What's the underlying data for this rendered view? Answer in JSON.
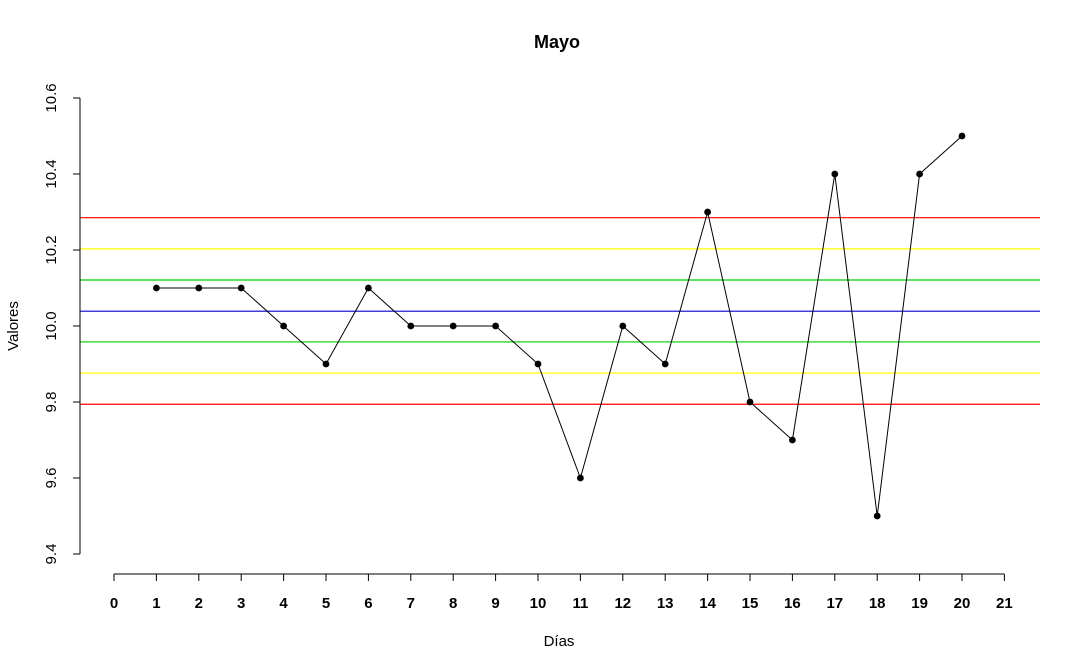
{
  "chart_data": {
    "type": "line",
    "title": "Mayo",
    "xlabel": "Días",
    "ylabel": "Valores",
    "xlim": [
      0,
      21
    ],
    "ylim": [
      9.4,
      10.6
    ],
    "x_ticks": [
      "0",
      "1",
      "2",
      "3",
      "4",
      "5",
      "6",
      "7",
      "8",
      "9",
      "10",
      "11",
      "12",
      "13",
      "14",
      "15",
      "16",
      "17",
      "18",
      "19",
      "20",
      "21"
    ],
    "y_ticks": [
      "9.4",
      "9.6",
      "9.8",
      "10.0",
      "10.2",
      "10.4",
      "10.6"
    ],
    "grid": false,
    "series": [
      {
        "x": [
          1,
          2,
          3,
          4,
          5,
          6,
          7,
          8,
          9,
          10,
          11,
          12,
          13,
          14,
          15,
          16,
          17,
          18,
          19,
          20
        ],
        "values": [
          10.1,
          10.1,
          10.1,
          10.0,
          9.9,
          10.1,
          10.0,
          10.0,
          10.0,
          9.9,
          9.6,
          10.0,
          9.9,
          10.3,
          9.8,
          9.7,
          10.4,
          9.5,
          10.4,
          10.5
        ],
        "color": "#000000"
      }
    ],
    "reference_lines": [
      {
        "y": 10.285,
        "color": "#ff0000"
      },
      {
        "y": 10.203,
        "color": "#ffff00"
      },
      {
        "y": 10.121,
        "color": "#00cc00"
      },
      {
        "y": 10.039,
        "color": "#0000cc"
      },
      {
        "y": 9.958,
        "color": "#00cc00"
      },
      {
        "y": 9.876,
        "color": "#ffff00"
      },
      {
        "y": 9.794,
        "color": "#ff0000"
      }
    ]
  }
}
